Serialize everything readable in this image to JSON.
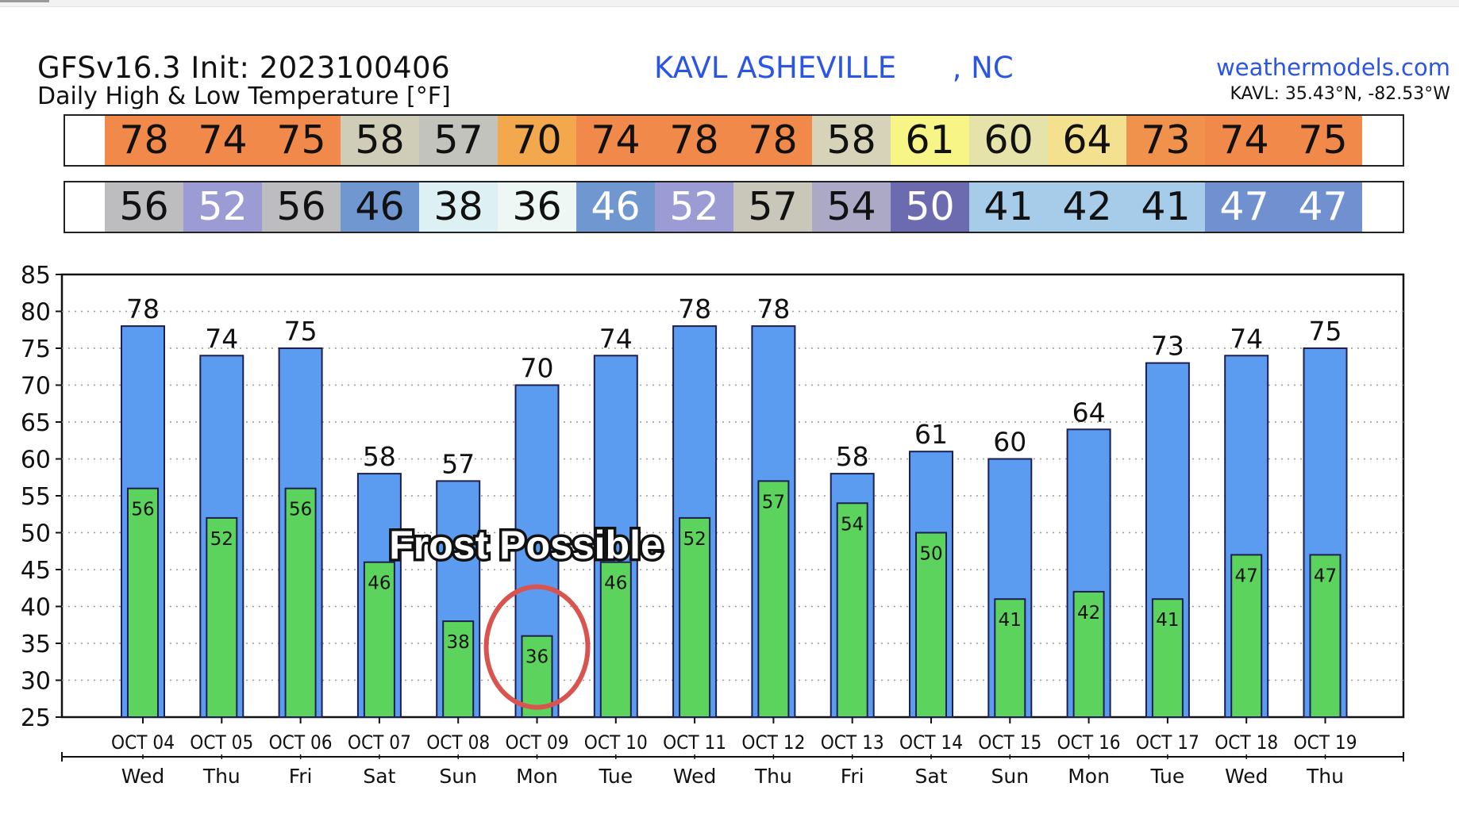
{
  "header": {
    "model_init": "GFSv16.3 Init: 2023100406",
    "subtitle": "Daily High & Low Temperature [°F]",
    "station": "KAVL ASHEVILLE      , NC",
    "brand": "weathermodels.com",
    "coords": "KAVL: 35.43°N, -82.53°W"
  },
  "colors": {
    "high_bar": "#5b9cf0",
    "low_bar": "#5cd35c",
    "bar_edge": "#1e1e50",
    "title_blue": "#2a55e6",
    "frost_circle": "#d9534f"
  },
  "strips": {
    "high": {
      "values": [
        78,
        74,
        75,
        58,
        57,
        70,
        74,
        78,
        78,
        58,
        61,
        60,
        64,
        73,
        74,
        75
      ],
      "bg": [
        "#f0894a",
        "#f0894a",
        "#f0894a",
        "#cfcdb8",
        "#c3c3bd",
        "#f3a84e",
        "#f0894a",
        "#f0894a",
        "#f0894a",
        "#d6d3b8",
        "#f7f586",
        "#e5e3aa",
        "#f4e190",
        "#f0914c",
        "#f0894a",
        "#f0894a"
      ]
    },
    "low": {
      "values": [
        56,
        52,
        56,
        46,
        38,
        36,
        46,
        52,
        57,
        54,
        50,
        41,
        42,
        41,
        47,
        47
      ],
      "bg": [
        "#bdbdbf",
        "#9c9bd4",
        "#bdbdbf",
        "#7097cf",
        "#ddf1f5",
        "#eef7f3",
        "#7097cf",
        "#9c9bd4",
        "#c8c7b9",
        "#aca9c6",
        "#6d6bb0",
        "#a6cce9",
        "#a6cce9",
        "#a6cce9",
        "#7090cf",
        "#7090cf"
      ],
      "fg": [
        "#111",
        "#ffffff",
        "#111",
        "#111",
        "#111",
        "#111",
        "#ffffff",
        "#ffffff",
        "#111",
        "#111",
        "#ffffff",
        "#111",
        "#111",
        "#111",
        "#ffffff",
        "#ffffff"
      ]
    }
  },
  "chart_data": {
    "type": "bar",
    "categories": [
      "OCT 04",
      "OCT 05",
      "OCT 06",
      "OCT 07",
      "OCT 08",
      "OCT 09",
      "OCT 10",
      "OCT 11",
      "OCT 12",
      "OCT 13",
      "OCT 14",
      "OCT 15",
      "OCT 16",
      "OCT 17",
      "OCT 18",
      "OCT 19"
    ],
    "weekdays": [
      "Wed",
      "Thu",
      "Fri",
      "Sat",
      "Sun",
      "Mon",
      "Tue",
      "Wed",
      "Thu",
      "Fri",
      "Sat",
      "Sun",
      "Mon",
      "Tue",
      "Wed",
      "Thu"
    ],
    "series": [
      {
        "values": [
          78,
          74,
          75,
          58,
          57,
          70,
          74,
          78,
          78,
          58,
          61,
          60,
          64,
          73,
          74,
          75
        ]
      },
      {
        "values": [
          56,
          52,
          56,
          46,
          38,
          36,
          46,
          52,
          57,
          54,
          50,
          41,
          42,
          41,
          47,
          47
        ]
      }
    ],
    "ylim": [
      25,
      85
    ],
    "yticks": [
      25,
      30,
      35,
      40,
      45,
      50,
      55,
      60,
      65,
      70,
      75,
      80,
      85
    ],
    "grid": true,
    "annotations": [
      {
        "text": "Frost Possible",
        "category": "OCT 09"
      }
    ]
  }
}
